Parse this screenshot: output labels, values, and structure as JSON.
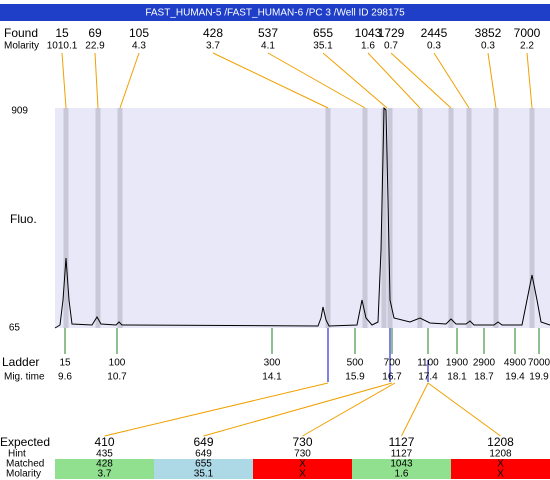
{
  "header": {
    "title": "FAST_HUMAN-5 /FAST_HUMAN-6 /PC 3 /Well ID 298175"
  },
  "found": {
    "label": "Found",
    "molarity_label": "Molarity",
    "sizes": [
      15,
      69,
      105,
      428,
      537,
      655,
      1043,
      1729,
      2445,
      3852,
      7000
    ],
    "molarity": [
      1010.1,
      22.9,
      4.3,
      3.7,
      4.1,
      35.1,
      1.6,
      0.7,
      0.3,
      0.3,
      2.2
    ]
  },
  "plot": {
    "y_label": "Fluo.",
    "y_top": 909,
    "y_bottom": 65
  },
  "ladder": {
    "label": "Ladder",
    "time_label": "Mig. time",
    "sizes": [
      15,
      100,
      300,
      500,
      700,
      1100,
      1900,
      2900,
      4900,
      7000
    ],
    "times": [
      9.6,
      10.7,
      14.1,
      15.9,
      16.7,
      17.4,
      18.1,
      18.7,
      19.4,
      19.9
    ]
  },
  "expected": {
    "label": "Expected",
    "hint_label": "Hint",
    "matched_label": "Matched",
    "molarity_label": "Molarity",
    "expected": [
      410,
      649,
      730,
      1127,
      1208
    ],
    "hint": [
      435,
      649,
      730,
      1127,
      1208
    ],
    "matched": [
      428,
      655,
      "X",
      1043,
      "X"
    ],
    "molarity": [
      3.7,
      35.1,
      "X",
      1.6,
      "X"
    ],
    "match_colors": [
      "#90e090",
      "#add8e6",
      "#ff0000",
      "#90e090",
      "#ff0000"
    ]
  }
}
